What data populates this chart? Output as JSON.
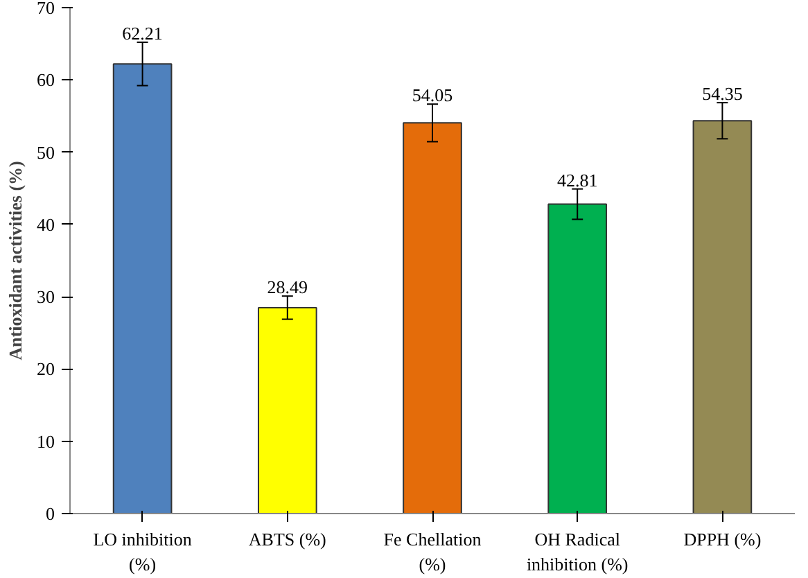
{
  "chart_data": {
    "type": "bar",
    "ylabel": "Antioxidant activities (%)",
    "categories": [
      "LO inhibition\n(%)",
      "ABTS (%)",
      "Fe Chellation\n(%)",
      "OH Radical\ninhibition (%)",
      "DPPH (%)"
    ],
    "values": [
      62.21,
      28.49,
      54.05,
      42.81,
      54.35
    ],
    "colors": [
      "#4f81bd",
      "#ffff00",
      "#e46c0a",
      "#00b050",
      "#948a54"
    ],
    "errors": [
      3.0,
      1.6,
      2.6,
      2.1,
      2.5
    ],
    "data_labels": true,
    "ylim": [
      0,
      70
    ],
    "yticks": [
      0,
      10,
      20,
      30,
      40,
      50,
      60,
      70
    ],
    "grid": false
  }
}
